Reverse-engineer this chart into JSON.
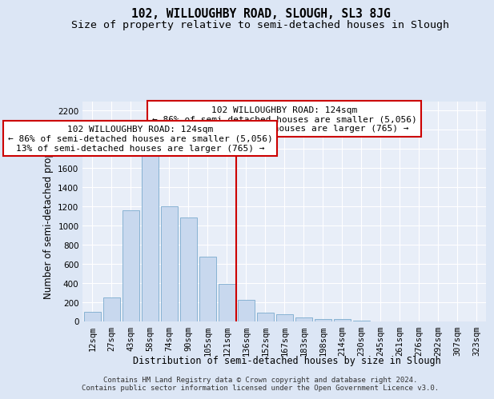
{
  "title": "102, WILLOUGHBY ROAD, SLOUGH, SL3 8JG",
  "subtitle": "Size of property relative to semi-detached houses in Slough",
  "xlabel": "Distribution of semi-detached houses by size in Slough",
  "ylabel": "Number of semi-detached properties",
  "footer_line1": "Contains HM Land Registry data © Crown copyright and database right 2024.",
  "footer_line2": "Contains public sector information licensed under the Open Government Licence v3.0.",
  "annotation_line1": "102 WILLOUGHBY ROAD: 124sqm",
  "annotation_line2": "← 86% of semi-detached houses are smaller (5,056)",
  "annotation_line3": "13% of semi-detached houses are larger (765) →",
  "bar_color": "#c8d8ee",
  "bar_edge_color": "#7aaace",
  "vline_color": "#cc0000",
  "categories": [
    "12sqm",
    "27sqm",
    "43sqm",
    "58sqm",
    "74sqm",
    "90sqm",
    "105sqm",
    "121sqm",
    "136sqm",
    "152sqm",
    "167sqm",
    "183sqm",
    "198sqm",
    "214sqm",
    "230sqm",
    "245sqm",
    "261sqm",
    "276sqm",
    "292sqm",
    "307sqm",
    "323sqm"
  ],
  "values": [
    95,
    245,
    1160,
    1770,
    1200,
    1085,
    670,
    390,
    225,
    85,
    70,
    40,
    25,
    20,
    5,
    0,
    0,
    0,
    0,
    0,
    0
  ],
  "ylim": [
    0,
    2300
  ],
  "yticks": [
    0,
    200,
    400,
    600,
    800,
    1000,
    1200,
    1400,
    1600,
    1800,
    2000,
    2200
  ],
  "vline_index": 7.5,
  "background_color": "#dce6f5",
  "plot_background_color": "#e8eef8",
  "grid_color": "#ffffff",
  "title_fontsize": 10.5,
  "subtitle_fontsize": 9.5,
  "axis_label_fontsize": 8.5,
  "tick_fontsize": 7.5,
  "annotation_fontsize": 8,
  "footer_fontsize": 6.5
}
